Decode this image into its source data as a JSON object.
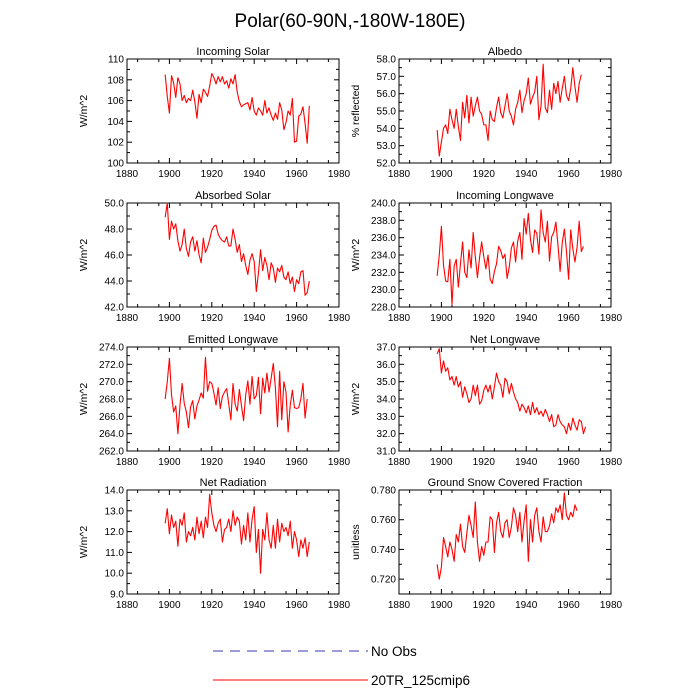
{
  "figure": {
    "title": "Polar(60-90N,-180W-180E)",
    "legend": [
      {
        "label": "No Obs",
        "color": "#3a3ab0",
        "style": "dashed"
      },
      {
        "label": "20TR_125cmip6",
        "color": "#ff0000",
        "style": "solid"
      }
    ]
  },
  "chart_data": [
    {
      "type": "line",
      "title": "Incoming Solar",
      "xlabel": "",
      "ylabel": "W/m^2",
      "xlim": [
        1880,
        1980
      ],
      "ylim": [
        100,
        110
      ],
      "xticks": [
        1880,
        1900,
        1920,
        1940,
        1960,
        1980
      ],
      "yticks": [
        100,
        102,
        104,
        106,
        108,
        110
      ],
      "ytick_labels": [
        "100",
        "102",
        "104",
        "106",
        "108",
        "110"
      ],
      "series": [
        {
          "name": "20TR_125cmip6",
          "color": "#ff0000",
          "x_start": 1898,
          "x_step": 1,
          "values": [
            108.5,
            106.4,
            104.8,
            108.4,
            107.7,
            106.3,
            108.2,
            107.6,
            106.0,
            106.5,
            105.8,
            106.2,
            106.0,
            107.0,
            105.9,
            104.3,
            106.6,
            105.8,
            107.1,
            106.8,
            106.4,
            107.4,
            108.6,
            108.2,
            107.6,
            108.3,
            107.8,
            108.3,
            107.6,
            107.9,
            107.2,
            108.1,
            107.6,
            108.5,
            106.8,
            105.9,
            105.4,
            105.6,
            105.7,
            105.8,
            105.1,
            106.3,
            105.0,
            104.6,
            105.3,
            105.0,
            104.6,
            106.0,
            104.8,
            105.3,
            104.6,
            104.1,
            104.8,
            104.2,
            105.8,
            105.1,
            103.2,
            103.9,
            105.0,
            104.6,
            106.2,
            102.0,
            102.1,
            104.5,
            104.7,
            105.4,
            103.8,
            101.9,
            105.5
          ]
        }
      ]
    },
    {
      "type": "line",
      "title": "Albedo",
      "xlabel": "",
      "ylabel": "% reflected",
      "xlim": [
        1880,
        1980
      ],
      "ylim": [
        52,
        58
      ],
      "xticks": [
        1880,
        1900,
        1920,
        1940,
        1960,
        1980
      ],
      "yticks": [
        52,
        53,
        54,
        55,
        56,
        57,
        58
      ],
      "ytick_labels": [
        "52.0",
        "53.0",
        "54.0",
        "55.0",
        "56.0",
        "57.0",
        "58.0"
      ],
      "series": [
        {
          "name": "20TR_125cmip6",
          "color": "#ff0000",
          "x_start": 1898,
          "x_step": 1,
          "values": [
            53.9,
            52.4,
            53.2,
            54.0,
            54.2,
            53.7,
            55.1,
            54.5,
            54.0,
            55.1,
            54.1,
            53.3,
            55.5,
            54.6,
            55.9,
            54.3,
            55.8,
            54.7,
            55.3,
            55.8,
            55.0,
            54.8,
            54.2,
            54.2,
            53.3,
            55.0,
            54.5,
            54.4,
            55.2,
            55.8,
            54.9,
            54.6,
            55.3,
            56.0,
            55.0,
            54.7,
            54.2,
            55.1,
            55.5,
            56.2,
            54.9,
            55.6,
            56.0,
            56.9,
            55.4,
            55.8,
            56.1,
            57.0,
            54.5,
            55.3,
            57.7,
            55.2,
            54.9,
            56.2,
            55.1,
            56.6,
            56.0,
            56.7,
            55.5,
            56.3,
            57.0,
            55.9,
            55.6,
            56.3,
            57.5,
            56.4,
            55.5,
            56.6,
            57.1
          ]
        }
      ]
    },
    {
      "type": "line",
      "title": "Absorbed Solar",
      "xlabel": "",
      "ylabel": "W/m^2",
      "xlim": [
        1880,
        1980
      ],
      "ylim": [
        42,
        50
      ],
      "xticks": [
        1880,
        1900,
        1920,
        1940,
        1960,
        1980
      ],
      "yticks": [
        42,
        44,
        46,
        48,
        50
      ],
      "ytick_labels": [
        "42.0",
        "44.0",
        "46.0",
        "48.0",
        "50.0"
      ],
      "series": [
        {
          "name": "20TR_125cmip6",
          "color": "#ff0000",
          "x_start": 1898,
          "x_step": 1,
          "values": [
            48.9,
            50.0,
            47.2,
            48.6,
            48.0,
            48.4,
            47.1,
            46.3,
            46.8,
            48.0,
            46.5,
            45.9,
            47.0,
            47.4,
            46.3,
            47.1,
            46.0,
            45.4,
            47.3,
            46.2,
            46.6,
            47.2,
            47.9,
            48.2,
            48.3,
            47.6,
            47.3,
            47.1,
            47.0,
            47.4,
            46.7,
            46.7,
            48.0,
            47.2,
            46.2,
            46.8,
            45.5,
            46.1,
            45.2,
            44.5,
            45.6,
            46.1,
            45.5,
            43.2,
            44.6,
            46.4,
            44.8,
            45.8,
            45.2,
            44.1,
            45.4,
            45.0,
            43.9,
            45.0,
            44.7,
            45.2,
            44.3,
            44.1,
            44.7,
            43.8,
            44.3,
            43.2,
            44.1,
            43.8,
            44.7,
            44.8,
            42.9,
            43.1,
            44.0
          ]
        }
      ]
    },
    {
      "type": "line",
      "title": "Incoming Longwave",
      "xlabel": "",
      "ylabel": "W/m^2",
      "xlim": [
        1880,
        1980
      ],
      "ylim": [
        228,
        240
      ],
      "xticks": [
        1880,
        1900,
        1920,
        1940,
        1960,
        1980
      ],
      "yticks": [
        228,
        230,
        232,
        234,
        236,
        238,
        240
      ],
      "ytick_labels": [
        "228.0",
        "230.0",
        "232.0",
        "234.0",
        "236.0",
        "238.0",
        "240.0"
      ],
      "series": [
        {
          "name": "20TR_125cmip6",
          "color": "#ff0000",
          "x_start": 1898,
          "x_step": 1,
          "values": [
            231.6,
            234.0,
            237.3,
            232.8,
            231.0,
            230.9,
            233.5,
            228.3,
            232.7,
            233.5,
            230.3,
            233.0,
            235.5,
            232.0,
            231.4,
            234.6,
            232.5,
            236.6,
            233.8,
            231.4,
            233.7,
            235.5,
            233.8,
            232.4,
            234.0,
            231.2,
            230.7,
            232.1,
            233.0,
            235.0,
            234.5,
            233.6,
            234.1,
            231.3,
            232.6,
            234.8,
            235.5,
            233.2,
            235.6,
            236.6,
            233.5,
            238.2,
            236.4,
            238.8,
            235.8,
            234.3,
            236.9,
            236.5,
            234.1,
            239.2,
            236.6,
            235.5,
            237.9,
            233.3,
            236.1,
            236.6,
            237.8,
            235.1,
            232.1,
            235.4,
            237.0,
            234.4,
            231.2,
            236.9,
            234.7,
            233.2,
            234.9,
            237.9,
            234.4,
            235.0
          ]
        }
      ]
    },
    {
      "type": "line",
      "title": "Emitted Longwave",
      "xlabel": "",
      "ylabel": "W/m^2",
      "xlim": [
        1880,
        1980
      ],
      "ylim": [
        262,
        274
      ],
      "xticks": [
        1880,
        1900,
        1920,
        1940,
        1960,
        1980
      ],
      "yticks": [
        262,
        264,
        266,
        268,
        270,
        272,
        274
      ],
      "ytick_labels": [
        "262.0",
        "264.0",
        "266.0",
        "268.0",
        "270.0",
        "272.0",
        "274.0"
      ],
      "series": [
        {
          "name": "20TR_125cmip6",
          "color": "#ff0000",
          "x_start": 1898,
          "x_step": 1,
          "values": [
            268.0,
            270.0,
            272.7,
            268.5,
            266.5,
            267.2,
            264.0,
            267.3,
            269.8,
            267.5,
            266.5,
            264.7,
            267.1,
            267.8,
            265.7,
            267.2,
            267.9,
            268.7,
            268.1,
            272.8,
            268.9,
            270.0,
            269.8,
            268.7,
            267.3,
            269.3,
            266.9,
            268.3,
            268.8,
            269.2,
            267.4,
            265.6,
            269.8,
            267.4,
            266.6,
            269.1,
            267.2,
            265.5,
            268.5,
            270.1,
            267.4,
            270.6,
            268.0,
            268.4,
            270.5,
            266.3,
            270.4,
            268.7,
            271.0,
            268.8,
            270.4,
            272.1,
            269.3,
            264.8,
            271.2,
            265.6,
            270.0,
            268.8,
            264.2,
            267.3,
            269.0,
            267.0,
            266.9,
            267.0,
            268.0,
            269.8,
            265.8,
            268.0
          ]
        }
      ]
    },
    {
      "type": "line",
      "title": "Net Longwave",
      "xlabel": "",
      "ylabel": "W/m^2",
      "xlim": [
        1880,
        1980
      ],
      "ylim": [
        31,
        37
      ],
      "xticks": [
        1880,
        1900,
        1920,
        1940,
        1960,
        1980
      ],
      "yticks": [
        31,
        32,
        33,
        34,
        35,
        36,
        37
      ],
      "ytick_labels": [
        "31.0",
        "32.0",
        "33.0",
        "34.0",
        "35.0",
        "36.0",
        "37.0"
      ],
      "series": [
        {
          "name": "20TR_125cmip6",
          "color": "#ff0000",
          "x_start": 1898,
          "x_step": 1,
          "values": [
            36.6,
            36.9,
            35.5,
            36.2,
            35.6,
            35.8,
            35.1,
            35.3,
            34.8,
            35.3,
            34.7,
            35.0,
            34.1,
            34.7,
            34.3,
            33.8,
            34.0,
            34.8,
            34.2,
            34.8,
            33.7,
            33.9,
            34.5,
            34.8,
            34.4,
            34.8,
            34.0,
            34.7,
            35.5,
            35.0,
            34.8,
            34.1,
            35.2,
            35.0,
            34.3,
            34.9,
            34.4,
            34.0,
            33.8,
            33.3,
            33.7,
            33.5,
            33.2,
            33.6,
            33.1,
            33.8,
            33.2,
            33.5,
            33.1,
            33.3,
            33.0,
            33.4,
            33.1,
            32.7,
            33.1,
            32.4,
            32.5,
            33.1,
            32.7,
            32.5,
            32.4,
            32.0,
            32.6,
            32.2,
            32.9,
            32.5,
            32.2,
            32.8,
            32.7,
            32.0,
            32.4
          ]
        }
      ]
    },
    {
      "type": "line",
      "title": "Net Radiation",
      "xlabel": "",
      "ylabel": "W/m^2",
      "xlim": [
        1880,
        1980
      ],
      "ylim": [
        9,
        14
      ],
      "xticks": [
        1880,
        1900,
        1920,
        1940,
        1960,
        1980
      ],
      "yticks": [
        9,
        10,
        11,
        12,
        13,
        14
      ],
      "ytick_labels": [
        "9.0",
        "10.0",
        "11.0",
        "12.0",
        "13.0",
        "14.0"
      ],
      "series": [
        {
          "name": "20TR_125cmip6",
          "color": "#ff0000",
          "x_start": 1898,
          "x_step": 1,
          "values": [
            12.4,
            13.1,
            11.9,
            12.8,
            12.2,
            12.5,
            11.3,
            12.6,
            12.3,
            12.9,
            11.5,
            12.0,
            11.8,
            12.2,
            11.6,
            12.7,
            11.9,
            12.5,
            11.7,
            12.7,
            12.2,
            13.8,
            12.9,
            12.3,
            12.0,
            12.4,
            12.6,
            11.5,
            12.1,
            12.2,
            12.6,
            12.0,
            13.0,
            12.3,
            12.7,
            12.5,
            11.4,
            12.3,
            11.6,
            12.9,
            11.5,
            12.6,
            13.2,
            11.0,
            12.1,
            10.0,
            12.1,
            11.6,
            12.9,
            11.6,
            11.2,
            12.3,
            11.2,
            12.6,
            11.5,
            12.4,
            12.0,
            12.2,
            11.8,
            12.5,
            11.2,
            12.0,
            11.6,
            10.8,
            11.6,
            11.2,
            11.7,
            10.8,
            11.5
          ]
        }
      ]
    },
    {
      "type": "line",
      "title": "Ground Snow Covered Fraction",
      "xlabel": "",
      "ylabel": "unitless",
      "xlim": [
        1880,
        1980
      ],
      "ylim": [
        0.71,
        0.78
      ],
      "xticks": [
        1880,
        1900,
        1920,
        1940,
        1960,
        1980
      ],
      "yticks": [
        0.72,
        0.74,
        0.76,
        0.78
      ],
      "ytick_labels": [
        "0.720",
        "0.740",
        "0.760",
        "0.780"
      ],
      "series": [
        {
          "name": "20TR_125cmip6",
          "color": "#ff0000",
          "x_start": 1898,
          "x_step": 1,
          "values": [
            0.73,
            0.72,
            0.728,
            0.748,
            0.742,
            0.735,
            0.745,
            0.74,
            0.732,
            0.75,
            0.745,
            0.757,
            0.742,
            0.738,
            0.751,
            0.763,
            0.756,
            0.748,
            0.772,
            0.745,
            0.732,
            0.742,
            0.736,
            0.745,
            0.745,
            0.762,
            0.76,
            0.738,
            0.758,
            0.765,
            0.752,
            0.748,
            0.758,
            0.76,
            0.748,
            0.755,
            0.768,
            0.763,
            0.752,
            0.765,
            0.745,
            0.759,
            0.77,
            0.732,
            0.76,
            0.745,
            0.763,
            0.768,
            0.752,
            0.745,
            0.762,
            0.752,
            0.752,
            0.756,
            0.764,
            0.758,
            0.768,
            0.765,
            0.77,
            0.76,
            0.778,
            0.763,
            0.76,
            0.765,
            0.762,
            0.77,
            0.766
          ]
        }
      ]
    }
  ]
}
